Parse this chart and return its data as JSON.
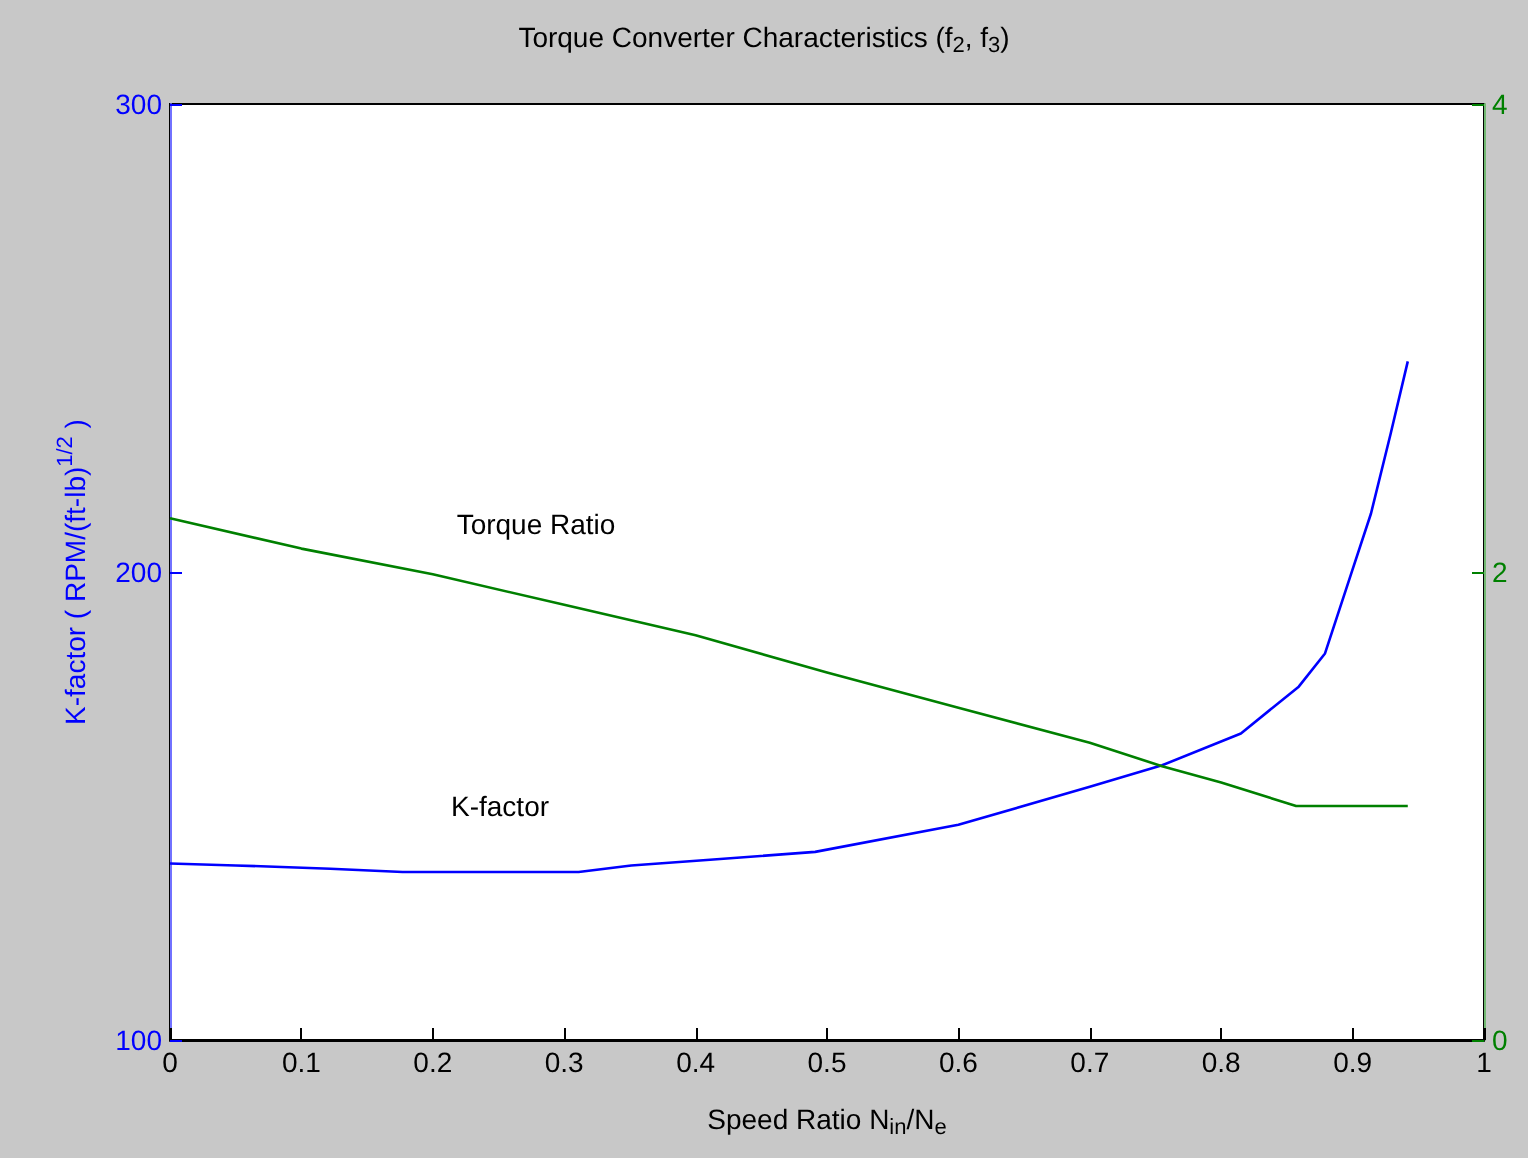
{
  "chart_data": {
    "type": "line",
    "title": "Torque Converter Characteristics (f$_{2}$, f$_{3}$)",
    "xlabel": "Speed Ratio N$_{in}$/N$_{e}$",
    "ylabel": "K-factor ( RPM/(ft-lb)$^{1/2}$ )",
    "xlim": [
      0,
      1
    ],
    "xticks": [
      0,
      0.1,
      0.2,
      0.3,
      0.4,
      0.5,
      0.6,
      0.7,
      0.8,
      0.9,
      1
    ],
    "ylim": [
      100,
      300
    ],
    "yticks": [
      100,
      200,
      300
    ],
    "y2lim": [
      0,
      4
    ],
    "y2ticks": [
      0,
      2,
      4
    ],
    "grid": false,
    "marker": "none",
    "line_style": "solid",
    "series": [
      {
        "color": "#0000ff",
        "x": [
          0,
          0.05,
          0.122,
          0.177,
          0.311,
          0.351,
          0.411,
          0.491,
          0.6,
          0.7,
          0.755,
          0.815,
          0.859,
          0.879,
          0.899,
          0.914,
          0.929,
          0.942
        ],
        "values": [
          137.7,
          137.3,
          136.6,
          135.9,
          135.9,
          137.3,
          138.5,
          140.2,
          146.0,
          154.1,
          158.7,
          165.5,
          175.5,
          182.6,
          199.7,
          212.5,
          229.6,
          245
        ]
      },
      {
        "color": "#008000",
        "axis": "y2",
        "x": [
          0,
          0.1,
          0.2,
          0.3,
          0.4,
          0.5,
          0.6,
          0.7,
          0.755,
          0.8,
          0.857,
          0.942
        ],
        "values": [
          2.23,
          2.1,
          1.99,
          1.86,
          1.73,
          1.57,
          1.42,
          1.27,
          1.17,
          1.1,
          1.0,
          1.0
        ]
      }
    ],
    "annotations": [
      "Torque Ratio",
      "K-factor"
    ]
  }
}
